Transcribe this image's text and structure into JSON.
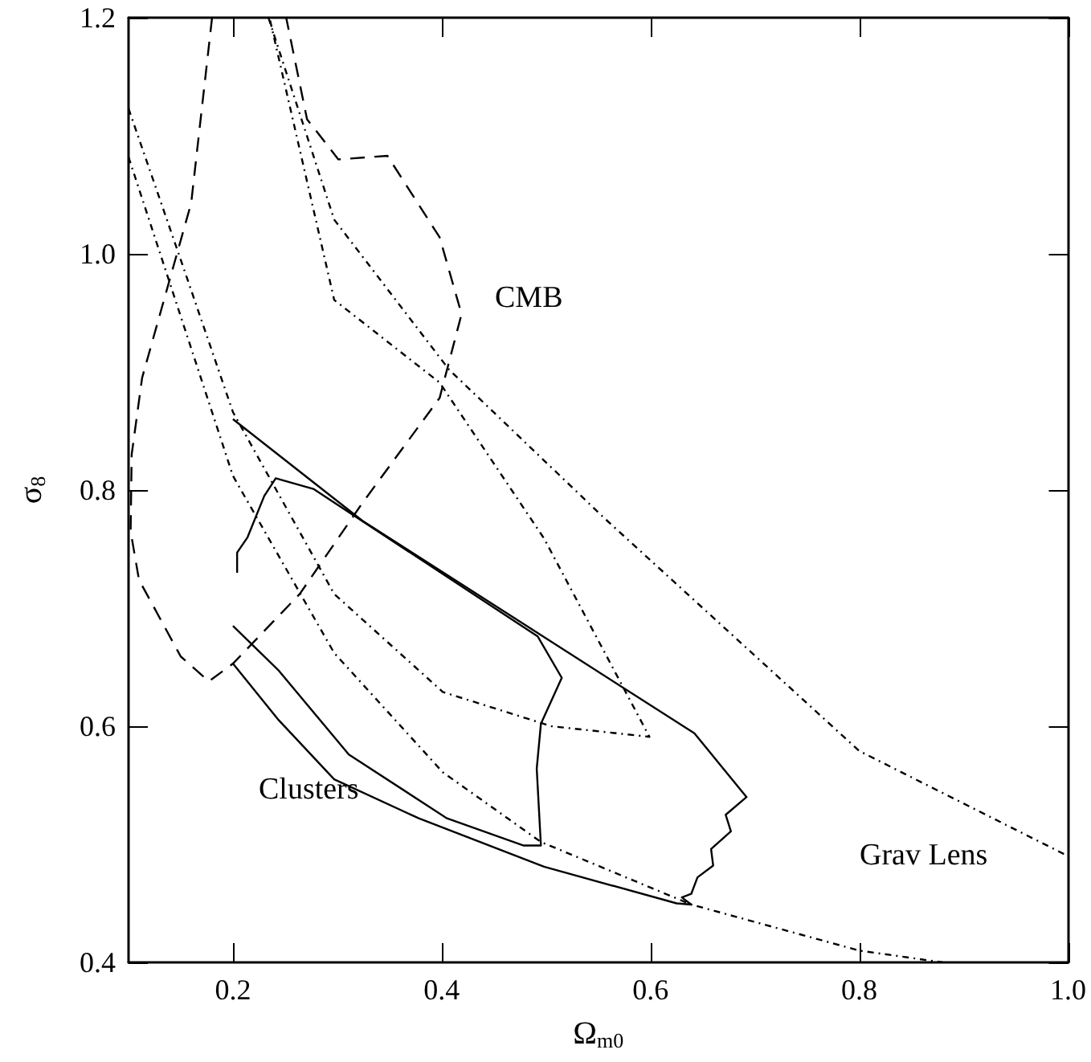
{
  "chart_data": {
    "type": "line",
    "xlabel": "Ω$_{m0}$",
    "ylabel": "σ$_{8}$",
    "xlim": [
      0.1,
      1.0
    ],
    "ylim": [
      0.4,
      1.2
    ],
    "xticks": [
      0.2,
      0.4,
      0.6,
      0.8,
      {
        "value": 1,
        "label": "1.0"
      }
    ],
    "yticks": [
      0.4,
      0.6,
      0.8,
      {
        "value": 1,
        "label": "1.0"
      },
      1.2
    ],
    "grid": false,
    "marker": "none",
    "series": [
      {
        "color": "#000000",
        "line_style": "dashed",
        "x": [
          0.18,
          0.16,
          0.113,
          0.103,
          0.102,
          0.11,
          0.15,
          0.177,
          0.2,
          0.264,
          0.324,
          0.398,
          0.419,
          0.398,
          0.348,
          0.301,
          0.271,
          0.251
        ],
        "values": [
          1.2,
          1.043,
          0.895,
          0.83,
          0.765,
          0.724,
          0.659,
          0.638,
          0.653,
          0.712,
          0.789,
          0.878,
          0.949,
          1.014,
          1.083,
          1.08,
          1.114,
          1.2
        ]
      },
      {
        "color": "#000000",
        "line_style": "dotted",
        "x": [
          0.1,
          0.15,
          0.2,
          0.297,
          0.401,
          0.505,
          0.599,
          0.498,
          0.398,
          0.297,
          0.235
        ],
        "values": [
          1.123,
          0.995,
          0.866,
          0.712,
          0.629,
          0.6,
          0.591,
          0.759,
          0.891,
          0.961,
          1.2
        ]
      },
      {
        "color": "#000000",
        "line_style": "dotted",
        "x": [
          0.1,
          0.2,
          0.297,
          0.401,
          0.495,
          0.639,
          0.8,
          0.88
        ],
        "values": [
          1.082,
          0.812,
          0.662,
          0.561,
          0.502,
          0.449,
          0.41,
          0.4
        ]
      },
      {
        "color": "#000000",
        "line_style": "dotted",
        "x": [
          0.234,
          0.297,
          0.407,
          0.556,
          0.8,
          1.0
        ],
        "values": [
          1.2,
          1.029,
          0.902,
          0.776,
          0.579,
          0.49
        ]
      },
      {
        "color": "#000000",
        "line_style": "solid",
        "x": [
          0.2,
          0.324,
          0.642,
          0.692,
          0.672,
          0.677,
          0.658,
          0.66,
          0.645,
          0.639,
          0.63,
          0.639,
          0.625,
          0.498,
          0.378,
          0.297,
          0.244,
          0.2
        ],
        "values": [
          0.86,
          0.774,
          0.594,
          0.54,
          0.525,
          0.511,
          0.496,
          0.482,
          0.472,
          0.458,
          0.455,
          0.449,
          0.45,
          0.481,
          0.522,
          0.555,
          0.605,
          0.653
        ]
      },
      {
        "color": "#000000",
        "line_style": "solid",
        "x": [
          0.204,
          0.204,
          0.214,
          0.23,
          0.241,
          0.277,
          0.492,
          0.515,
          0.495,
          0.491,
          0.495,
          0.478,
          0.405,
          0.311,
          0.244,
          0.2
        ],
        "values": [
          0.73,
          0.747,
          0.76,
          0.795,
          0.81,
          0.801,
          0.676,
          0.641,
          0.602,
          0.564,
          0.499,
          0.499,
          0.522,
          0.576,
          0.647,
          0.685
        ]
      }
    ],
    "annotations": [
      "CMB",
      "Clusters",
      "Grav Lens"
    ]
  }
}
